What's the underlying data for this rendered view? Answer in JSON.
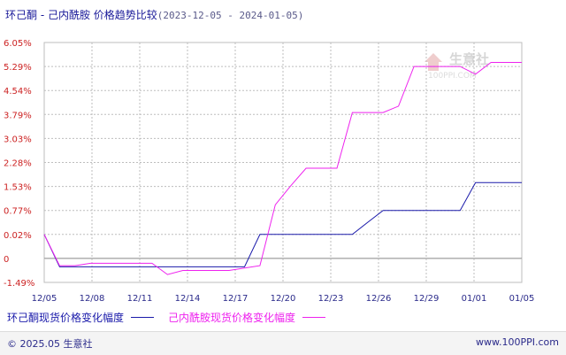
{
  "header": {
    "title": "环己酮 - 己内酰胺 价格趋势比较",
    "date_range": "(2023-12-05 - 2024-01-05)"
  },
  "watermark": {
    "brand": "生意社",
    "site": "100PPI.COM"
  },
  "footer": {
    "copyright": "© 2025.05 生意社",
    "site": "www.100PPI.com"
  },
  "colors": {
    "series1": "#1a1aaa",
    "series2": "#ee22ee",
    "grid": "#bdbdbd",
    "axis_text": "#cc2222",
    "x_text": "#2a2a8a"
  },
  "chart_data": {
    "type": "line",
    "title": "环己酮 - 己内酰胺 价格趋势比较",
    "x_tick_labels": [
      "12/05",
      "12/08",
      "12/11",
      "12/14",
      "12/17",
      "12/20",
      "12/23",
      "12/26",
      "12/29",
      "01/01",
      "01/05"
    ],
    "y_tick_labels": [
      "6.05%",
      "5.29%",
      "4.54%",
      "3.79%",
      "3.03%",
      "2.28%",
      "1.53%",
      "0.77%",
      "0.02%",
      "0",
      "-1.49%"
    ],
    "ylim": [
      -1.49,
      6.05
    ],
    "grid": true,
    "legend_position": "bottom",
    "series": [
      {
        "name": "环己酮现货价格变化幅度",
        "x": [
          "12/05",
          "12/06",
          "12/07",
          "12/08",
          "12/09",
          "12/10",
          "12/11",
          "12/12",
          "12/13",
          "12/14",
          "12/15",
          "12/16",
          "12/17",
          "12/18",
          "12/19",
          "12/20",
          "12/21",
          "12/22",
          "12/23",
          "12/24",
          "12/25",
          "12/26",
          "12/27",
          "12/28",
          "12/29",
          "12/30",
          "12/31",
          "01/01",
          "01/02",
          "01/03",
          "01/04",
          "01/05"
        ],
        "values": [
          0.02,
          -0.52,
          -0.52,
          -0.52,
          -0.52,
          -0.52,
          -0.52,
          -0.52,
          -0.52,
          -0.52,
          -0.52,
          -0.52,
          -0.52,
          -0.52,
          0.02,
          0.02,
          0.02,
          0.02,
          0.02,
          0.02,
          0.02,
          0.4,
          0.77,
          0.77,
          0.77,
          0.77,
          0.77,
          0.77,
          1.65,
          1.65,
          1.65,
          1.65
        ]
      },
      {
        "name": "己内酰胺现货价格变化幅度",
        "x": [
          "12/05",
          "12/06",
          "12/07",
          "12/08",
          "12/09",
          "12/10",
          "12/11",
          "12/12",
          "12/13",
          "12/14",
          "12/15",
          "12/16",
          "12/17",
          "12/18",
          "12/19",
          "12/20",
          "12/21",
          "12/22",
          "12/23",
          "12/24",
          "12/25",
          "12/26",
          "12/27",
          "12/28",
          "12/29",
          "12/30",
          "12/31",
          "01/01",
          "01/02",
          "01/03",
          "01/04",
          "01/05"
        ],
        "values": [
          0.02,
          -0.45,
          -0.45,
          -0.3,
          -0.3,
          -0.3,
          -0.3,
          -0.3,
          -1.0,
          -0.75,
          -0.75,
          -0.75,
          -0.75,
          -0.6,
          -0.45,
          0.95,
          1.55,
          2.1,
          2.1,
          2.1,
          3.85,
          3.85,
          3.85,
          4.05,
          5.29,
          5.29,
          5.29,
          5.29,
          5.05,
          5.42,
          5.42,
          5.42
        ]
      }
    ]
  }
}
